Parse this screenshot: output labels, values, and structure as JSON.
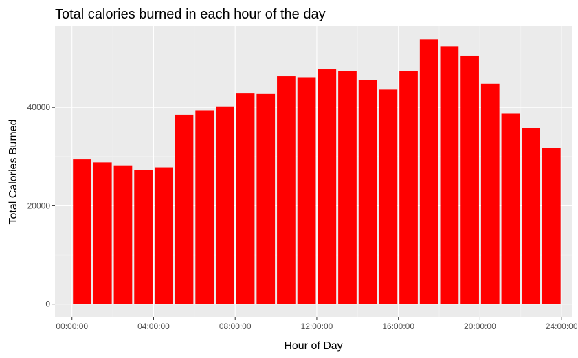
{
  "colors": {
    "panel_background": "#ebebeb",
    "major_grid": "#ffffff",
    "minor_grid": "#f4f4f4",
    "bar_fill": "#ff0000",
    "tick_text": "#4d4d4d",
    "tick_mark": "#333333"
  },
  "chart_data": {
    "type": "bar",
    "title": "Total calories burned in each hour of the day",
    "xlabel": "Hour of Day",
    "ylabel": "Total Calories Burned",
    "categories": [
      "00:00:00",
      "01:00:00",
      "02:00:00",
      "03:00:00",
      "04:00:00",
      "05:00:00",
      "06:00:00",
      "07:00:00",
      "08:00:00",
      "09:00:00",
      "10:00:00",
      "11:00:00",
      "12:00:00",
      "13:00:00",
      "14:00:00",
      "15:00:00",
      "16:00:00",
      "17:00:00",
      "18:00:00",
      "19:00:00",
      "20:00:00",
      "21:00:00",
      "22:00:00",
      "23:00:00"
    ],
    "values": [
      29400,
      28800,
      28200,
      27300,
      27800,
      38500,
      39400,
      40200,
      42800,
      42700,
      46300,
      46100,
      47700,
      47400,
      45600,
      43600,
      47400,
      53800,
      52400,
      50500,
      44800,
      38700,
      35800,
      31700
    ],
    "x_axis": {
      "type": "time",
      "range": [
        "-00:50:00",
        "24:30:00"
      ],
      "ticks": [
        "00:00:00",
        "04:00:00",
        "08:00:00",
        "12:00:00",
        "16:00:00",
        "20:00:00",
        "24:00:00"
      ]
    },
    "y_axis": {
      "range": [
        -2700,
        56500
      ],
      "ticks": [
        0,
        20000,
        40000
      ],
      "tick_labels": [
        "0",
        "20000",
        "40000"
      ]
    },
    "grid": true,
    "legend": "none"
  }
}
